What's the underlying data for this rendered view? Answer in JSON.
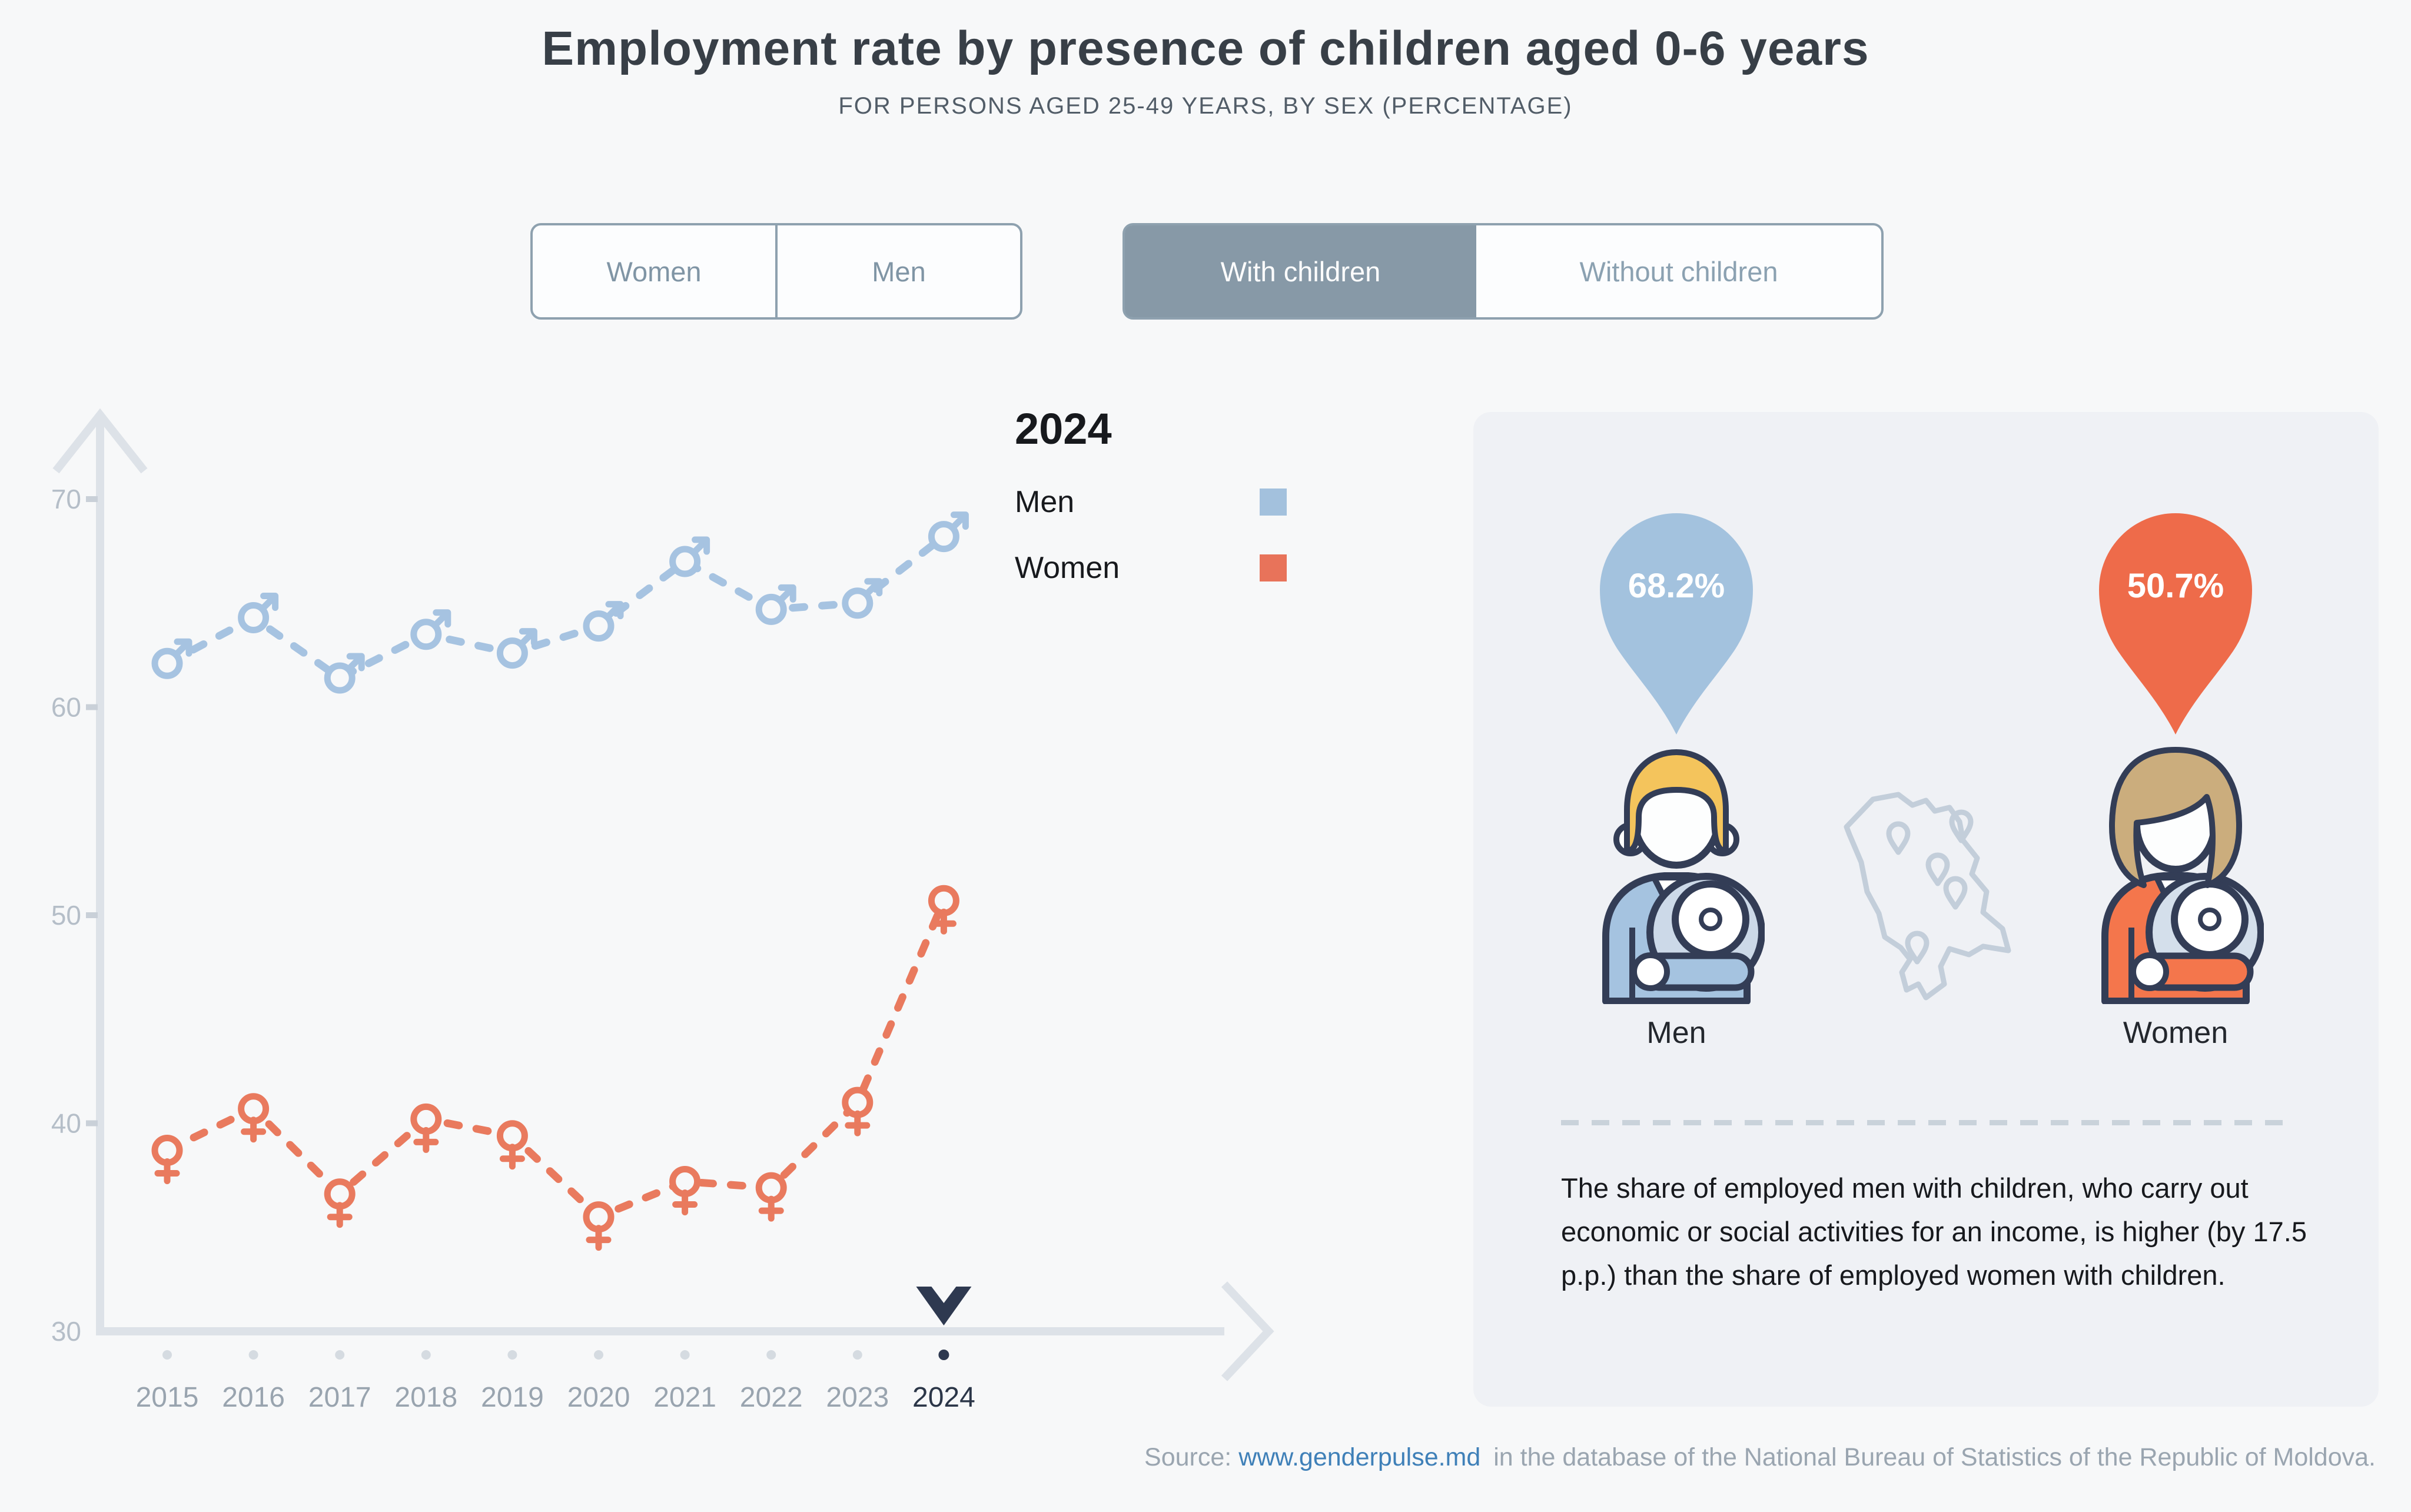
{
  "title": "Employment rate by presence of children aged 0-6 years",
  "subtitle": "FOR PERSONS AGED 25-49 YEARS, BY SEX (PERCENTAGE)",
  "toggles": {
    "sex": {
      "options": [
        "Women",
        "Men"
      ]
    },
    "children": {
      "options": [
        "With children",
        "Without children"
      ],
      "selected": "With children"
    }
  },
  "legend": {
    "year": "2024",
    "items": [
      {
        "label": "Men",
        "color": "#a3c1dd"
      },
      {
        "label": "Women",
        "color": "#e8735a"
      }
    ]
  },
  "chart_data": {
    "type": "line",
    "x": [
      "2015",
      "2016",
      "2017",
      "2018",
      "2019",
      "2020",
      "2021",
      "2022",
      "2023",
      "2024"
    ],
    "series": [
      {
        "name": "Men",
        "marker": "male",
        "color": "#a6c3e1",
        "values": [
          62.1,
          64.3,
          61.4,
          63.5,
          62.6,
          63.9,
          67.0,
          64.7,
          65.0,
          68.2
        ]
      },
      {
        "name": "Women",
        "marker": "female",
        "color": "#e97a5e",
        "values": [
          38.7,
          40.7,
          36.6,
          40.2,
          39.4,
          35.5,
          37.2,
          36.9,
          41.0,
          50.7
        ]
      }
    ],
    "ylim": [
      30,
      70
    ],
    "yticks": [
      30,
      40,
      50,
      60,
      70
    ],
    "selected_year": "2024",
    "line_style": "dashed",
    "grid": false,
    "legend_position": "top-right",
    "colors": {
      "axis": "#dde2e8",
      "tick": "#c9d0d8",
      "ytick_label": "#b5bec8",
      "year_label": "#99a4af",
      "year_label_selected": "#2b3648",
      "year_dot": "#d5dbe1",
      "cursor": "#2e3950",
      "marker_fill": "#f7f8f9"
    }
  },
  "panel": {
    "men_value": "68.2%",
    "women_value": "50.7%",
    "men_label": "Men",
    "women_label": "Women",
    "men_pin_color": "#a3c2de",
    "women_pin_color": "#ee6b4a",
    "description": "The share of employed men with children, who carry out economic or social activities for an income, is higher (by 17.5 p.p.) than the share of employed women with children."
  },
  "source": {
    "prefix": "Source:",
    "link": "www.genderpulse.md",
    "suffix": "in the database of the National Bureau of Statistics of the Republic of Moldova."
  }
}
